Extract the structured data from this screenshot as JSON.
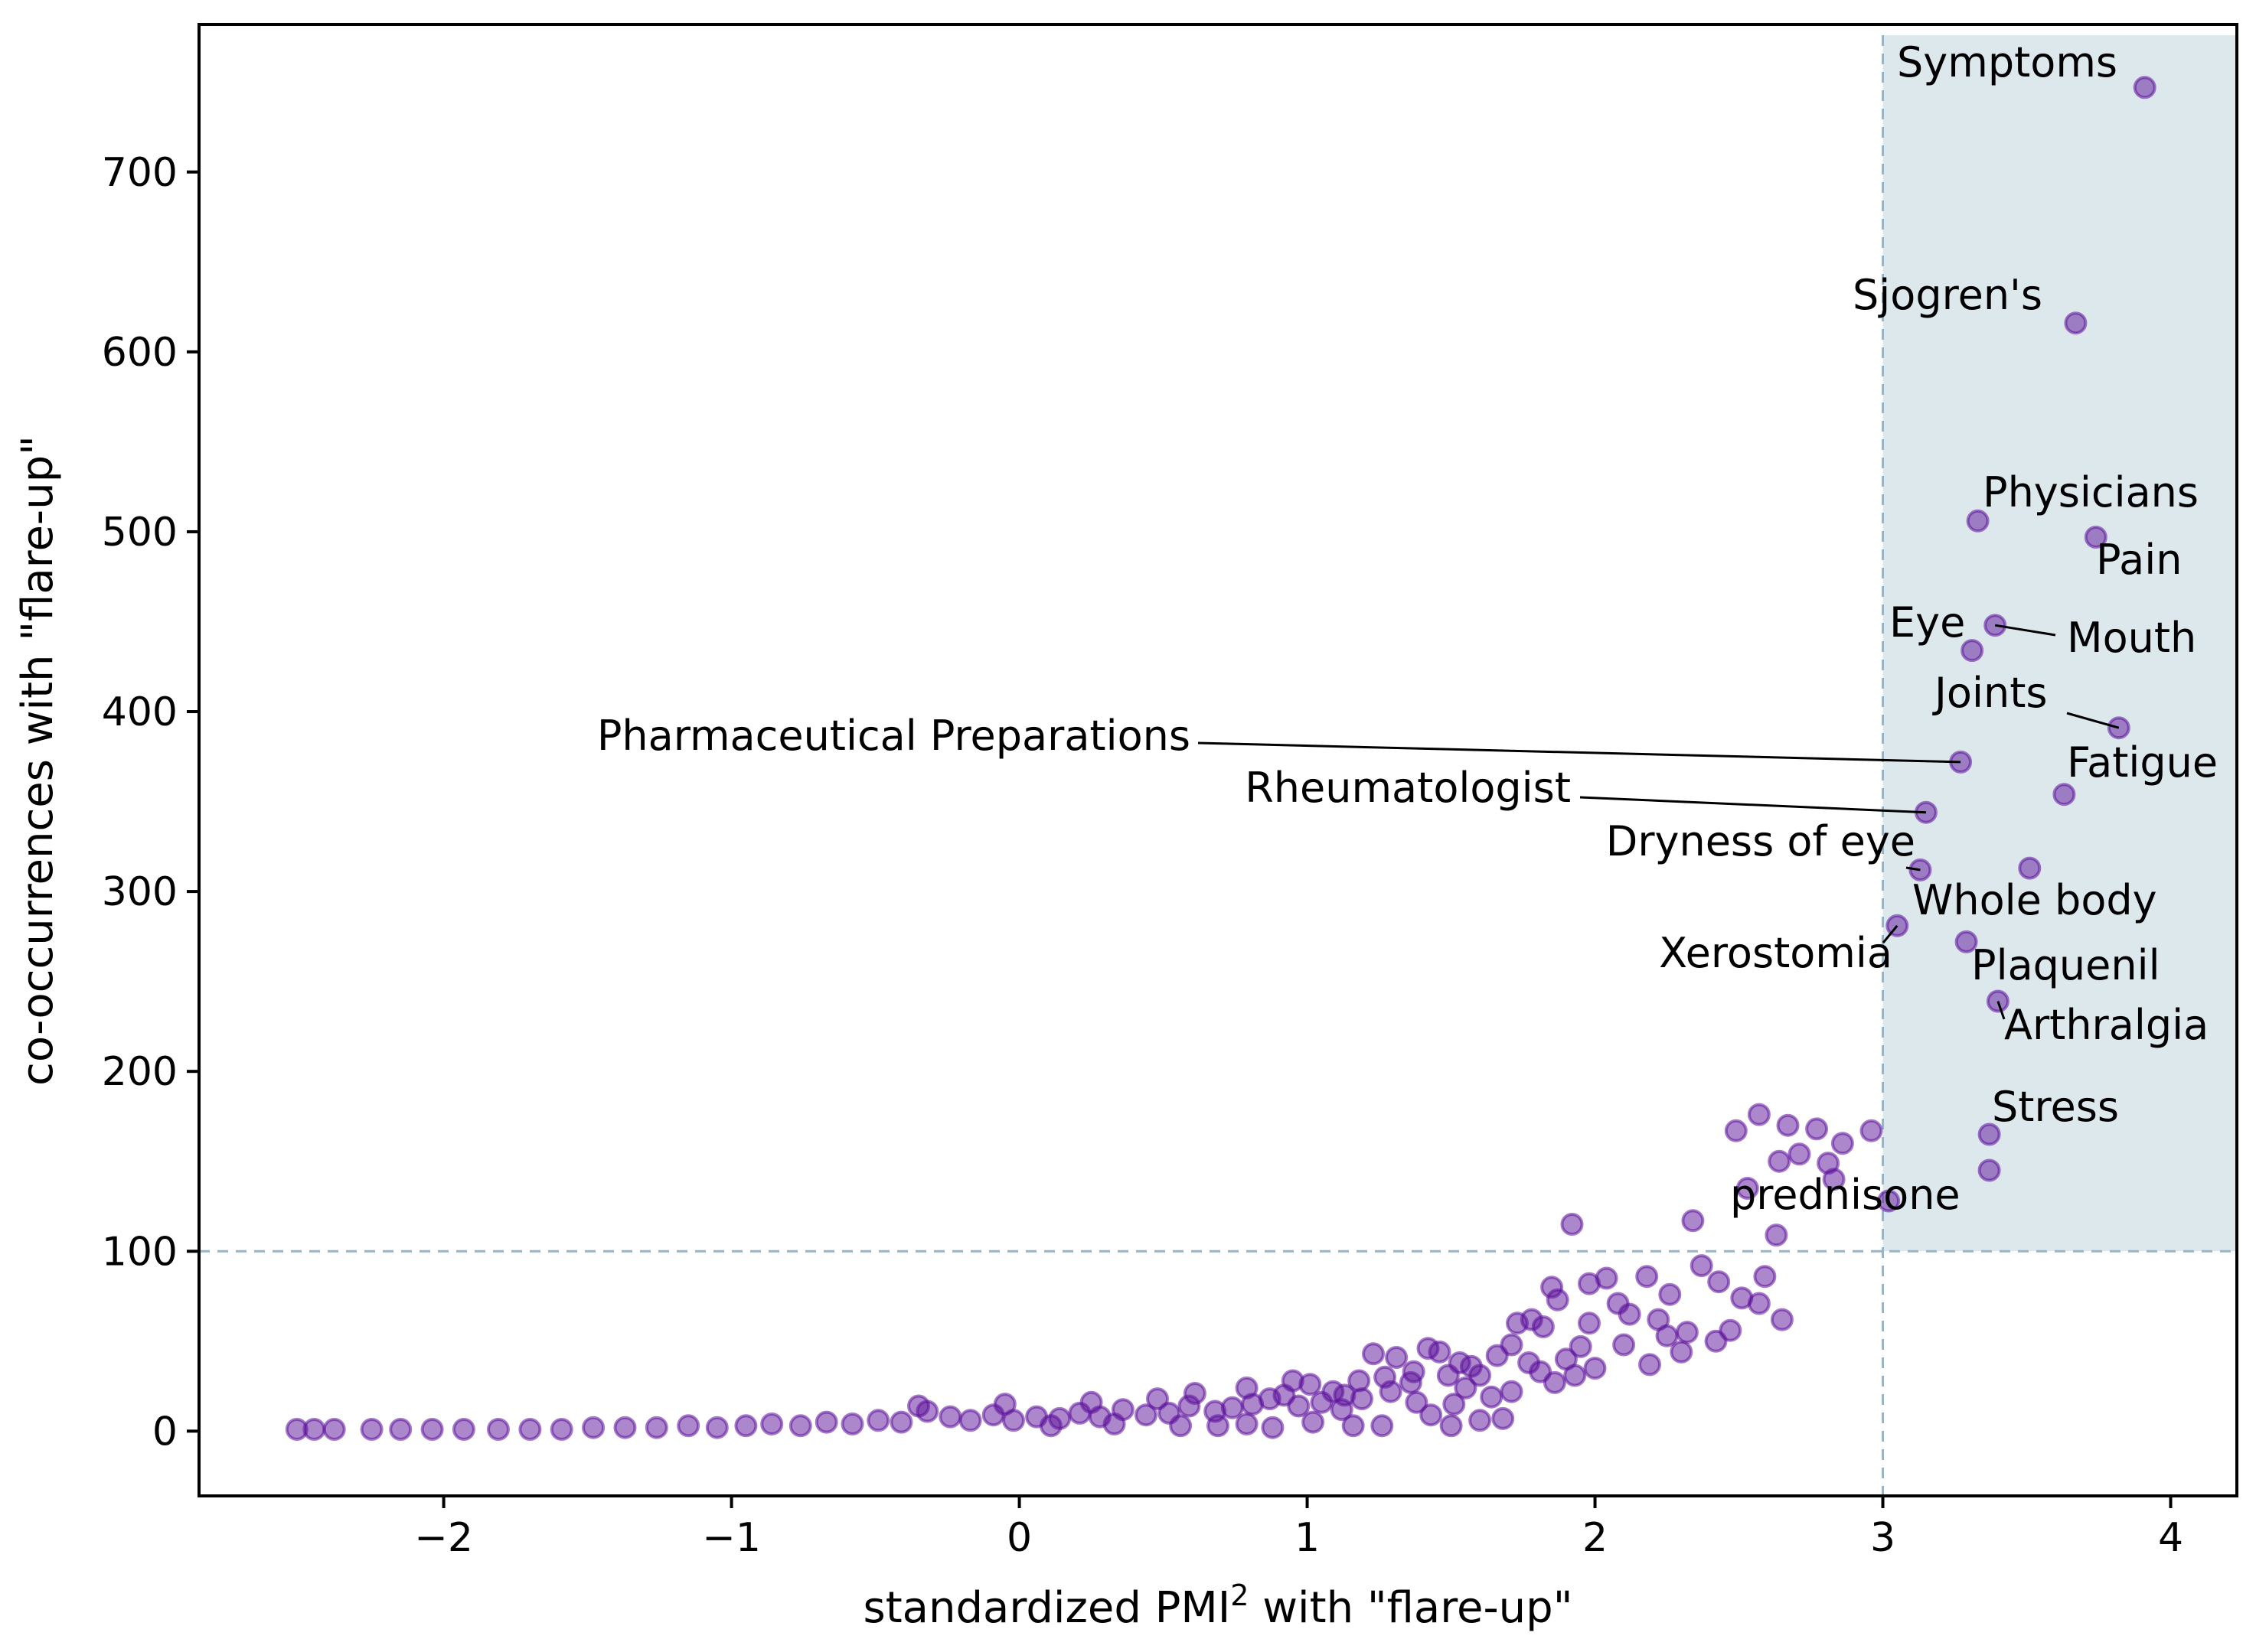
{
  "chart_data": {
    "type": "scatter",
    "xlabel_main": "standardized PMI",
    "xlabel_sup": "2",
    "xlabel_tail": " with \"flare-up\"",
    "ylabel": "co-occurrences with \"flare-up\"",
    "xlim": [
      -2.85,
      4.23
    ],
    "ylim": [
      -36,
      782
    ],
    "xticks": [
      -2,
      -1,
      0,
      1,
      2,
      3,
      4
    ],
    "xtick_labels": [
      "−2",
      "−1",
      "0",
      "1",
      "2",
      "3",
      "4"
    ],
    "yticks": [
      0,
      100,
      200,
      300,
      400,
      500,
      600,
      700
    ],
    "ytick_labels": [
      "0",
      "100",
      "200",
      "300",
      "400",
      "500",
      "600",
      "700"
    ],
    "thresholds": {
      "x": 3,
      "y": 100
    },
    "highlight_region": {
      "x_min": 3,
      "y_min": 100,
      "color": "#dde8ec"
    },
    "point_color": "#5b0f9a",
    "labeled_points": [
      {
        "label": "Symptoms",
        "x": 3.91,
        "y": 747
      },
      {
        "label": "Sjogren's",
        "x": 3.67,
        "y": 616
      },
      {
        "label": "Physicians",
        "x": 3.33,
        "y": 506
      },
      {
        "label": "Pain",
        "x": 3.74,
        "y": 497
      },
      {
        "label": "Eye",
        "x": 3.31,
        "y": 434
      },
      {
        "label": "Mouth",
        "x": 3.39,
        "y": 448
      },
      {
        "label": "Joints",
        "x": 3.82,
        "y": 391
      },
      {
        "label": "Pharmaceutical Preparations",
        "x": 3.27,
        "y": 372
      },
      {
        "label": "Fatigue",
        "x": 3.63,
        "y": 354
      },
      {
        "label": "Rheumatologist",
        "x": 3.15,
        "y": 344
      },
      {
        "label": "Dryness of eye",
        "x": 3.13,
        "y": 312
      },
      {
        "label": "Whole body",
        "x": 3.51,
        "y": 313
      },
      {
        "label": "Xerostomia",
        "x": 3.05,
        "y": 281
      },
      {
        "label": "Plaquenil",
        "x": 3.29,
        "y": 272
      },
      {
        "label": "Arthralgia",
        "x": 3.4,
        "y": 239
      },
      {
        "label": "Stress",
        "x": 3.37,
        "y": 165
      },
      {
        "label": "prednisone",
        "x": 3.37,
        "y": 145
      }
    ],
    "other_points": [
      {
        "x": 2.49,
        "y": 167
      },
      {
        "x": 2.57,
        "y": 176
      },
      {
        "x": 2.67,
        "y": 170
      },
      {
        "x": 2.77,
        "y": 168
      },
      {
        "x": 2.96,
        "y": 167
      },
      {
        "x": 2.86,
        "y": 160
      },
      {
        "x": 2.71,
        "y": 154
      },
      {
        "x": 2.64,
        "y": 150
      },
      {
        "x": 2.81,
        "y": 149
      },
      {
        "x": 2.83,
        "y": 140
      },
      {
        "x": 2.53,
        "y": 135
      },
      {
        "x": 3.02,
        "y": 128
      },
      {
        "x": 2.34,
        "y": 117
      },
      {
        "x": 1.92,
        "y": 115
      },
      {
        "x": 2.63,
        "y": 109
      },
      {
        "x": 2.37,
        "y": 92
      },
      {
        "x": 2.59,
        "y": 86
      },
      {
        "x": 2.43,
        "y": 83
      },
      {
        "x": 2.26,
        "y": 76
      },
      {
        "x": 2.51,
        "y": 74
      },
      {
        "x": 2.57,
        "y": 71
      },
      {
        "x": 2.65,
        "y": 62
      },
      {
        "x": 2.47,
        "y": 56
      },
      {
        "x": 2.42,
        "y": 50
      },
      {
        "x": 2.3,
        "y": 44
      },
      {
        "x": 2.19,
        "y": 37
      },
      {
        "x": 2.04,
        "y": 85
      },
      {
        "x": 2.18,
        "y": 86
      },
      {
        "x": 1.98,
        "y": 82
      },
      {
        "x": 1.85,
        "y": 80
      },
      {
        "x": 1.87,
        "y": 73
      },
      {
        "x": 2.08,
        "y": 71
      },
      {
        "x": 2.12,
        "y": 65
      },
      {
        "x": 2.22,
        "y": 62
      },
      {
        "x": 1.98,
        "y": 60
      },
      {
        "x": 1.78,
        "y": 62
      },
      {
        "x": 1.82,
        "y": 58
      },
      {
        "x": 1.73,
        "y": 60
      },
      {
        "x": 1.71,
        "y": 48
      },
      {
        "x": 1.95,
        "y": 47
      },
      {
        "x": 2.1,
        "y": 48
      },
      {
        "x": 2.25,
        "y": 53
      },
      {
        "x": 2.32,
        "y": 55
      },
      {
        "x": 1.9,
        "y": 40
      },
      {
        "x": 1.77,
        "y": 38
      },
      {
        "x": 1.66,
        "y": 42
      },
      {
        "x": 1.57,
        "y": 36
      },
      {
        "x": 1.6,
        "y": 31
      },
      {
        "x": 1.81,
        "y": 33
      },
      {
        "x": 1.93,
        "y": 31
      },
      {
        "x": 2.0,
        "y": 35
      },
      {
        "x": 1.86,
        "y": 27
      },
      {
        "x": 1.71,
        "y": 22
      },
      {
        "x": 1.64,
        "y": 19
      },
      {
        "x": 1.55,
        "y": 24
      },
      {
        "x": 1.46,
        "y": 44
      },
      {
        "x": 1.42,
        "y": 46
      },
      {
        "x": 1.31,
        "y": 41
      },
      {
        "x": 1.23,
        "y": 43
      },
      {
        "x": 1.36,
        "y": 27
      },
      {
        "x": 1.29,
        "y": 22
      },
      {
        "x": 1.19,
        "y": 18
      },
      {
        "x": 1.09,
        "y": 22
      },
      {
        "x": 1.01,
        "y": 26
      },
      {
        "x": 0.92,
        "y": 20
      },
      {
        "x": 1.51,
        "y": 15
      },
      {
        "x": 1.43,
        "y": 9
      },
      {
        "x": 1.6,
        "y": 6
      },
      {
        "x": 1.68,
        "y": 7
      },
      {
        "x": 1.5,
        "y": 3
      },
      {
        "x": 1.26,
        "y": 3
      },
      {
        "x": 1.53,
        "y": 38
      },
      {
        "x": 1.49,
        "y": 31
      },
      {
        "x": 1.37,
        "y": 33
      },
      {
        "x": 1.27,
        "y": 30
      },
      {
        "x": 1.18,
        "y": 28
      },
      {
        "x": 1.13,
        "y": 20
      },
      {
        "x": 1.05,
        "y": 16
      },
      {
        "x": 0.97,
        "y": 14
      },
      {
        "x": 0.87,
        "y": 18
      },
      {
        "x": 0.81,
        "y": 15
      },
      {
        "x": 0.74,
        "y": 13
      },
      {
        "x": 0.68,
        "y": 11
      },
      {
        "x": 0.59,
        "y": 14
      },
      {
        "x": 0.52,
        "y": 10
      },
      {
        "x": 0.44,
        "y": 9
      },
      {
        "x": 0.36,
        "y": 12
      },
      {
        "x": 0.28,
        "y": 8
      },
      {
        "x": 0.21,
        "y": 10
      },
      {
        "x": 0.14,
        "y": 7
      },
      {
        "x": 0.06,
        "y": 8
      },
      {
        "x": -0.02,
        "y": 6
      },
      {
        "x": -0.09,
        "y": 9
      },
      {
        "x": -0.17,
        "y": 6
      },
      {
        "x": -0.24,
        "y": 8
      },
      {
        "x": -0.32,
        "y": 11
      },
      {
        "x": -0.41,
        "y": 5
      },
      {
        "x": -0.49,
        "y": 6
      },
      {
        "x": -0.58,
        "y": 4
      },
      {
        "x": -0.67,
        "y": 5
      },
      {
        "x": -0.76,
        "y": 3
      },
      {
        "x": -0.86,
        "y": 4
      },
      {
        "x": -0.95,
        "y": 3
      },
      {
        "x": -1.05,
        "y": 2
      },
      {
        "x": -1.15,
        "y": 3
      },
      {
        "x": -1.26,
        "y": 2
      },
      {
        "x": -1.37,
        "y": 2
      },
      {
        "x": -1.48,
        "y": 2
      },
      {
        "x": -1.59,
        "y": 1
      },
      {
        "x": -1.7,
        "y": 1
      },
      {
        "x": -1.81,
        "y": 1
      },
      {
        "x": -1.93,
        "y": 1
      },
      {
        "x": -2.04,
        "y": 1
      },
      {
        "x": -2.15,
        "y": 1
      },
      {
        "x": -2.25,
        "y": 1
      },
      {
        "x": -2.38,
        "y": 1
      },
      {
        "x": -2.45,
        "y": 1
      },
      {
        "x": -2.51,
        "y": 1
      },
      {
        "x": 0.11,
        "y": 3
      },
      {
        "x": 0.33,
        "y": 4
      },
      {
        "x": 0.56,
        "y": 3
      },
      {
        "x": 0.79,
        "y": 4
      },
      {
        "x": 1.02,
        "y": 5
      },
      {
        "x": 0.48,
        "y": 18
      },
      {
        "x": 0.61,
        "y": 21
      },
      {
        "x": 0.79,
        "y": 24
      },
      {
        "x": 0.95,
        "y": 28
      },
      {
        "x": 1.12,
        "y": 12
      },
      {
        "x": 1.38,
        "y": 16
      },
      {
        "x": -0.05,
        "y": 15
      },
      {
        "x": 0.25,
        "y": 16
      },
      {
        "x": -0.35,
        "y": 14
      },
      {
        "x": 0.69,
        "y": 3
      },
      {
        "x": 0.88,
        "y": 2
      },
      {
        "x": 1.16,
        "y": 3
      }
    ]
  }
}
